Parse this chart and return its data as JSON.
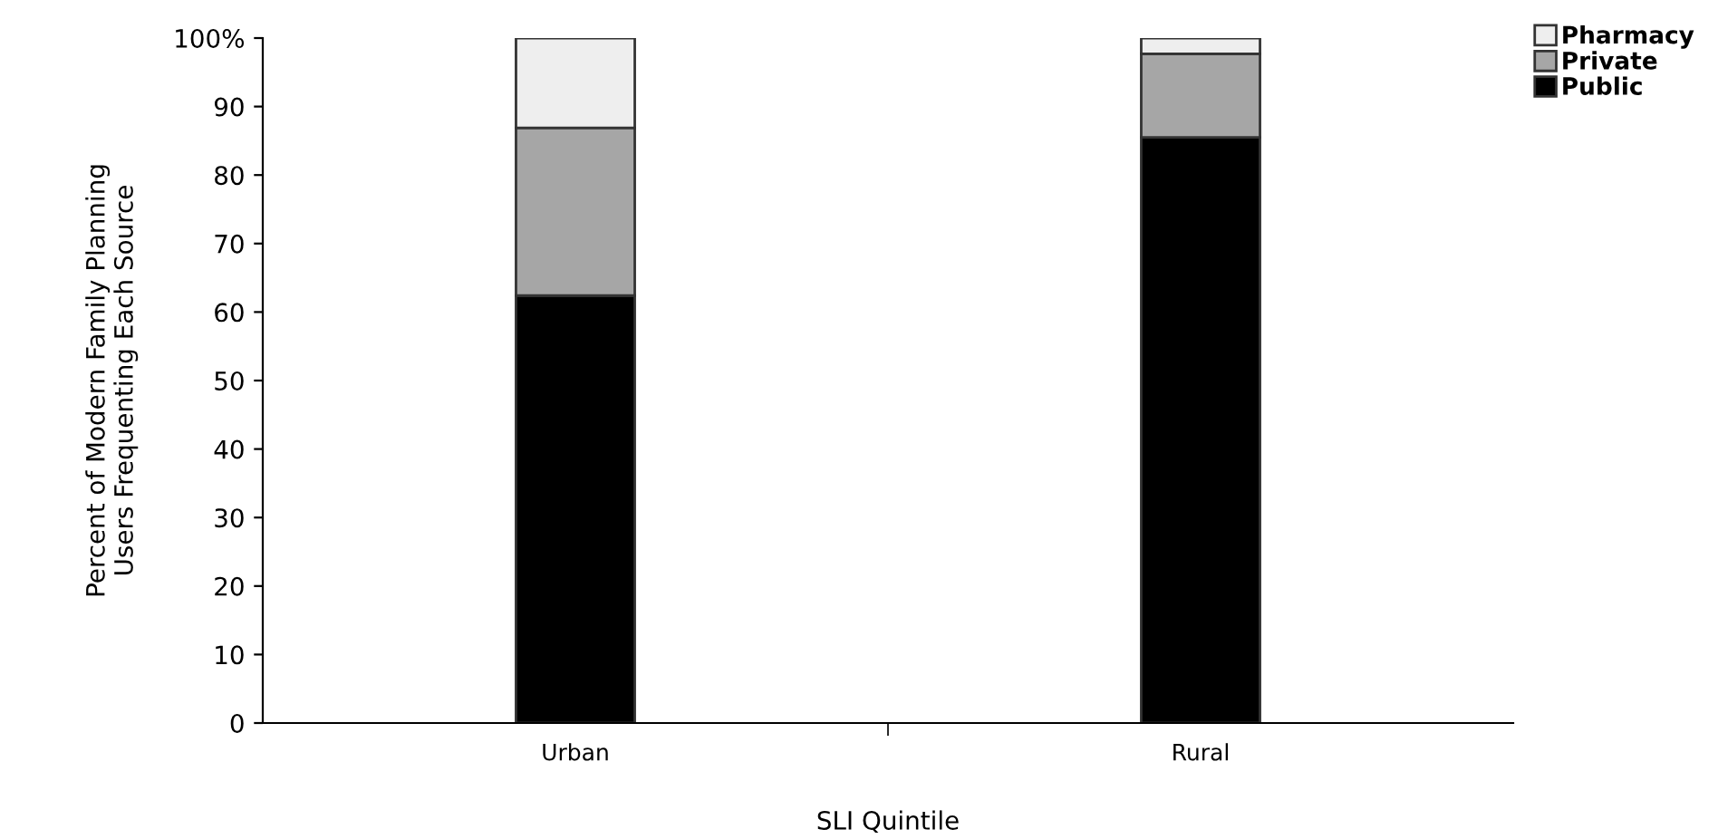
{
  "chart_data": {
    "type": "bar",
    "stacked": true,
    "xlabel": "SLI Quintile",
    "ylabel": "Percent of Modern Family Planning\nUsers Frequenting Each Source",
    "categories": [
      "Urban",
      "Rural"
    ],
    "series": [
      {
        "name": "Public",
        "color": "#000000",
        "values": [
          62.4,
          85.5
        ]
      },
      {
        "name": "Private",
        "color": "#a6a6a6",
        "values": [
          24.5,
          12.2
        ]
      },
      {
        "name": "Pharmacy",
        "color": "#eeeeee",
        "values": [
          13.1,
          2.3
        ]
      }
    ],
    "ylim": [
      0,
      100
    ],
    "yticks": [
      0,
      10,
      20,
      30,
      40,
      50,
      60,
      70,
      80,
      90,
      {
        "value": 100,
        "label": "100%"
      }
    ],
    "grid": false,
    "legend": "top right"
  }
}
